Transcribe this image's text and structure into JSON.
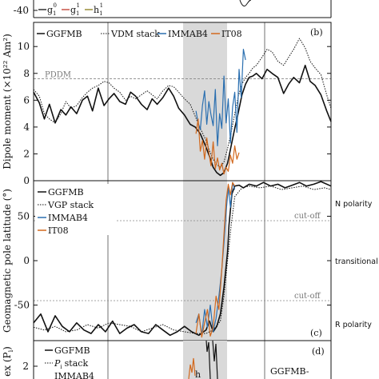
{
  "colors": {
    "black": "#111111",
    "blue": "#2a6fb0",
    "orange": "#d2691e",
    "red": "#c0392b",
    "olive": "#8a7d1a",
    "shade": "#d9d9d9",
    "refline": "#888888"
  },
  "top_strip": {
    "ytick": "-40",
    "legend": [
      "g",
      "g",
      "h"
    ]
  },
  "chart_data": [
    {
      "type": "line",
      "panel": "(b)",
      "ylabel": "Dipole moment (×10²² Am²)",
      "ylim": [
        0,
        11.8
      ],
      "yticks": [
        "0",
        "2",
        "4",
        "6",
        "8",
        "10"
      ],
      "legend": [
        "GGFMB",
        "VDM stack",
        "IMMAB4",
        "IT08"
      ],
      "reference_label": "PDDM",
      "reference_value": 7.6,
      "series": [
        {
          "name": "GGFMB",
          "x": [
            0,
            8,
            15,
            22,
            30,
            38,
            45,
            52,
            60,
            68,
            75,
            82,
            90,
            98,
            105,
            112,
            120,
            128,
            135,
            142,
            150,
            158,
            165,
            172,
            180,
            188,
            195,
            202,
            210,
            218,
            225,
            232,
            240,
            245,
            250,
            255,
            260,
            265,
            270,
            275,
            280,
            285,
            290,
            295,
            300,
            305,
            310,
            318,
            325,
            332,
            340,
            348,
            355,
            362,
            370,
            378,
            385,
            392,
            400,
            408,
            414
          ],
          "y": [
            6.6,
            5.8,
            4.6,
            5.7,
            4.3,
            5.3,
            4.9,
            5.5,
            5.0,
            6.0,
            6.3,
            5.2,
            6.9,
            5.6,
            6.1,
            6.5,
            5.9,
            5.7,
            6.6,
            6.3,
            5.7,
            5.3,
            6.1,
            5.7,
            6.2,
            6.9,
            6.3,
            5.4,
            4.9,
            4.2,
            4.0,
            3.5,
            2.5,
            1.8,
            1.0,
            0.6,
            0.4,
            0.6,
            1.3,
            2.6,
            3.9,
            5.1,
            6.4,
            7.2,
            7.7,
            7.8,
            8.0,
            7.6,
            8.3,
            8.0,
            7.7,
            6.5,
            7.2,
            7.7,
            7.3,
            8.6,
            7.4,
            7.1,
            6.4,
            5.2,
            4.4
          ]
        },
        {
          "name": "VDM stack",
          "x": [
            0,
            8,
            15,
            22,
            30,
            38,
            45,
            52,
            60,
            68,
            75,
            82,
            90,
            98,
            105,
            112,
            120,
            128,
            135,
            142,
            150,
            158,
            165,
            172,
            180,
            188,
            195,
            202,
            210,
            218,
            225,
            232,
            240,
            245,
            250,
            255,
            260,
            265,
            270,
            275,
            280,
            285,
            290,
            295,
            300,
            305,
            310,
            318,
            325,
            332,
            340,
            348,
            355,
            362,
            370,
            378,
            385,
            392,
            400,
            408,
            414
          ],
          "y": [
            6.8,
            6.3,
            5.0,
            4.6,
            4.3,
            5.0,
            5.9,
            5.4,
            5.6,
            6.2,
            6.6,
            6.9,
            7.1,
            7.4,
            7.3,
            6.9,
            6.6,
            6.0,
            6.3,
            6.1,
            6.4,
            6.7,
            6.4,
            6.1,
            6.7,
            7.1,
            7.0,
            6.6,
            6.1,
            5.7,
            4.8,
            3.9,
            3.0,
            2.2,
            1.6,
            1.2,
            1.0,
            1.4,
            2.4,
            3.6,
            5.0,
            6.3,
            7.2,
            7.7,
            8.0,
            8.4,
            8.6,
            9.2,
            9.8,
            9.6,
            8.9,
            8.6,
            9.2,
            9.8,
            10.6,
            9.9,
            8.9,
            8.4,
            7.9,
            6.4,
            5.4
          ]
        },
        {
          "name": "IMMAB4",
          "x": [
            226,
            229,
            232,
            235,
            238,
            241,
            244,
            247,
            250,
            253,
            256,
            259,
            262,
            265,
            268,
            271,
            274,
            277,
            280,
            283,
            286,
            289,
            292,
            295
          ],
          "y": [
            5.2,
            4.3,
            3.8,
            5.6,
            6.7,
            4.2,
            5.9,
            4.9,
            4.1,
            6.8,
            2.6,
            5.0,
            3.9,
            7.8,
            4.3,
            6.1,
            2.8,
            5.5,
            6.6,
            3.6,
            8.3,
            6.2,
            9.8,
            9.0
          ]
        },
        {
          "name": "IT08",
          "x": [
            226,
            229,
            232,
            235,
            238,
            241,
            244,
            247,
            250,
            253,
            256,
            259,
            262,
            265,
            268,
            271,
            274,
            277,
            280,
            283,
            286
          ],
          "y": [
            3.5,
            4.6,
            2.2,
            3.0,
            1.6,
            3.2,
            2.1,
            1.1,
            2.9,
            0.9,
            1.7,
            0.8,
            1.3,
            0.5,
            1.0,
            0.7,
            1.9,
            1.3,
            2.6,
            1.6,
            2.1
          ]
        }
      ]
    },
    {
      "type": "line",
      "panel": "(c)",
      "ylabel": "Geomagnetic pole latitude (°)",
      "ylim": [
        -90,
        90
      ],
      "yticks": [
        "-50",
        "0",
        "50"
      ],
      "legend": [
        "GGFMB",
        "VGP stack",
        "IMMAB4",
        "IT08"
      ],
      "cutoff_label": "cut-off",
      "cutoff_values": [
        45,
        -45
      ],
      "side_labels": [
        "N polarity",
        "transitional",
        "R polarity"
      ],
      "series": [
        {
          "name": "GGFMB",
          "x": [
            0,
            10,
            20,
            30,
            40,
            50,
            60,
            70,
            80,
            90,
            100,
            110,
            120,
            130,
            140,
            150,
            160,
            170,
            180,
            190,
            200,
            210,
            220,
            230,
            240,
            245,
            250,
            255,
            260,
            265,
            270,
            272,
            276,
            280,
            286,
            292,
            300,
            310,
            320,
            330,
            340,
            350,
            360,
            370,
            380,
            390,
            400,
            414
          ],
          "y": [
            -70,
            -60,
            -80,
            -62,
            -74,
            -80,
            -70,
            -78,
            -82,
            -72,
            -80,
            -68,
            -82,
            -76,
            -72,
            -80,
            -82,
            -72,
            -78,
            -84,
            -80,
            -74,
            -80,
            -84,
            -78,
            -68,
            -80,
            -74,
            -60,
            -30,
            10,
            40,
            75,
            84,
            85,
            82,
            86,
            84,
            88,
            84,
            86,
            82,
            85,
            88,
            84,
            86,
            89,
            84
          ]
        },
        {
          "name": "VGP stack",
          "x": [
            0,
            15,
            30,
            45,
            60,
            75,
            90,
            105,
            120,
            135,
            150,
            165,
            180,
            195,
            210,
            225,
            240,
            250,
            260,
            265,
            270,
            275,
            280,
            290,
            300,
            315,
            330,
            345,
            360,
            375,
            390,
            405,
            414
          ],
          "y": [
            -75,
            -78,
            -74,
            -80,
            -78,
            -72,
            -76,
            -70,
            -72,
            -74,
            -80,
            -76,
            -72,
            -78,
            -80,
            -82,
            -82,
            -78,
            -68,
            -40,
            0,
            40,
            72,
            82,
            84,
            82,
            84,
            80,
            82,
            84,
            80,
            82,
            80
          ]
        },
        {
          "name": "IMMAB4",
          "x": [
            226,
            230,
            234,
            238,
            242,
            246,
            250,
            254,
            258,
            262,
            265,
            268,
            271,
            274,
            277,
            280
          ],
          "y": [
            -70,
            -60,
            -84,
            -55,
            -75,
            -50,
            -80,
            -65,
            -40,
            -10,
            20,
            55,
            82,
            60,
            88,
            80
          ]
        },
        {
          "name": "IT08",
          "x": [
            226,
            230,
            234,
            238,
            242,
            246,
            250,
            254,
            258,
            262,
            265,
            268,
            271,
            274,
            277,
            280
          ],
          "y": [
            -82,
            -60,
            -86,
            -70,
            -55,
            -85,
            -75,
            -40,
            -55,
            -10,
            30,
            68,
            86,
            74,
            88,
            84
          ]
        }
      ]
    }
  ],
  "panel_d": {
    "ylabel_fragment": "ex (P",
    "ylabel_sub": "i",
    "ylabel_close": ")",
    "label": "(d)",
    "ytick": "2",
    "legend": [
      "GGFMB",
      "stack",
      "IMMAB4"
    ],
    "legend_stack_symbol": "P",
    "legend_stack_sub": "i",
    "right_text": "GGFMB-",
    "inner_label": "h"
  }
}
